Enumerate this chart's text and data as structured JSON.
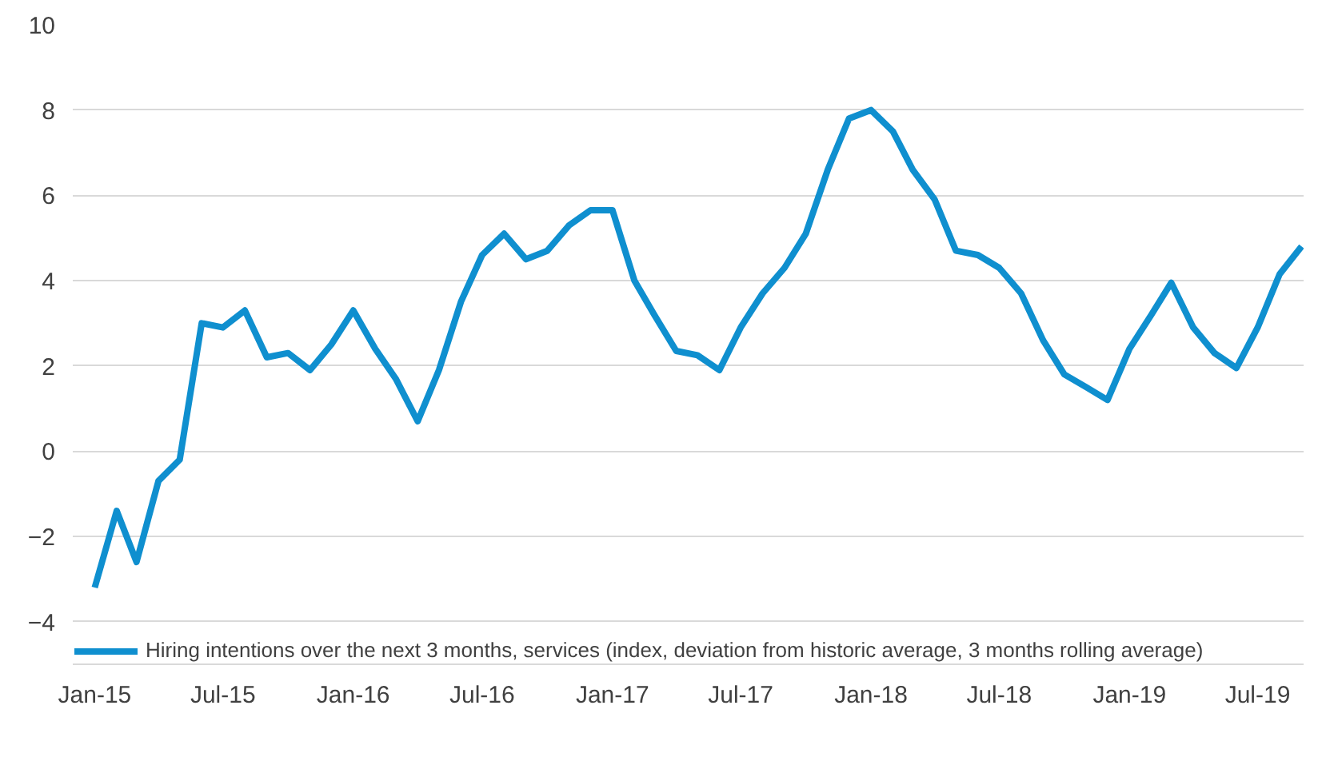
{
  "chart_data": {
    "type": "line",
    "x": [
      "2015-01",
      "2015-02",
      "2015-03",
      "2015-04",
      "2015-05",
      "2015-06",
      "2015-07",
      "2015-08",
      "2015-09",
      "2015-10",
      "2015-11",
      "2015-12",
      "2016-01",
      "2016-02",
      "2016-03",
      "2016-04",
      "2016-05",
      "2016-06",
      "2016-07",
      "2016-08",
      "2016-09",
      "2016-10",
      "2016-11",
      "2016-12",
      "2017-01",
      "2017-02",
      "2017-03",
      "2017-04",
      "2017-05",
      "2017-06",
      "2017-07",
      "2017-08",
      "2017-09",
      "2017-10",
      "2017-11",
      "2017-12",
      "2018-01",
      "2018-02",
      "2018-03",
      "2018-04",
      "2018-05",
      "2018-06",
      "2018-07",
      "2018-08",
      "2018-09",
      "2018-10",
      "2018-11",
      "2018-12",
      "2019-01",
      "2019-02",
      "2019-03",
      "2019-04",
      "2019-05",
      "2019-06",
      "2019-07",
      "2019-08",
      "2019-09"
    ],
    "series": [
      {
        "name": "Hiring intentions over the next 3 months, services (index, deviation from historic average, 3 months rolling average)",
        "color": "#0f8fcf",
        "values": [
          -3.2,
          -1.4,
          -2.6,
          -0.7,
          -0.2,
          3.0,
          2.9,
          3.3,
          2.2,
          2.3,
          1.9,
          2.5,
          3.3,
          2.4,
          1.7,
          0.7,
          1.9,
          3.5,
          4.6,
          5.1,
          4.5,
          4.7,
          5.3,
          5.65,
          5.65,
          4.0,
          3.2,
          2.35,
          2.25,
          1.9,
          2.9,
          3.7,
          4.3,
          5.1,
          6.6,
          7.8,
          8.0,
          7.5,
          6.6,
          5.9,
          4.7,
          4.6,
          4.3,
          3.7,
          2.6,
          1.8,
          1.5,
          1.2,
          2.4,
          3.2,
          3.95,
          2.9,
          2.3,
          1.95,
          2.9,
          4.15,
          4.8
        ]
      }
    ],
    "xlim": [
      "2014-12-01",
      "2019-09-05"
    ],
    "xticks": [
      {
        "value": "2015-01",
        "label": "Jan-15"
      },
      {
        "value": "2015-07",
        "label": "Jul-15"
      },
      {
        "value": "2016-01",
        "label": "Jan-16"
      },
      {
        "value": "2016-07",
        "label": "Jul-16"
      },
      {
        "value": "2017-01",
        "label": "Jan-17"
      },
      {
        "value": "2017-07",
        "label": "Jul-17"
      },
      {
        "value": "2018-01",
        "label": "Jan-18"
      },
      {
        "value": "2018-07",
        "label": "Jul-18"
      },
      {
        "value": "2019-01",
        "label": "Jan-19"
      },
      {
        "value": "2019-07",
        "label": "Jul-19"
      }
    ],
    "ylim": [
      -5,
      10
    ],
    "yticks": [
      -4,
      -2,
      0,
      2,
      4,
      6,
      8,
      10
    ],
    "grid": "y",
    "legend": "bottom",
    "marker": "none",
    "line_style": "solid"
  }
}
